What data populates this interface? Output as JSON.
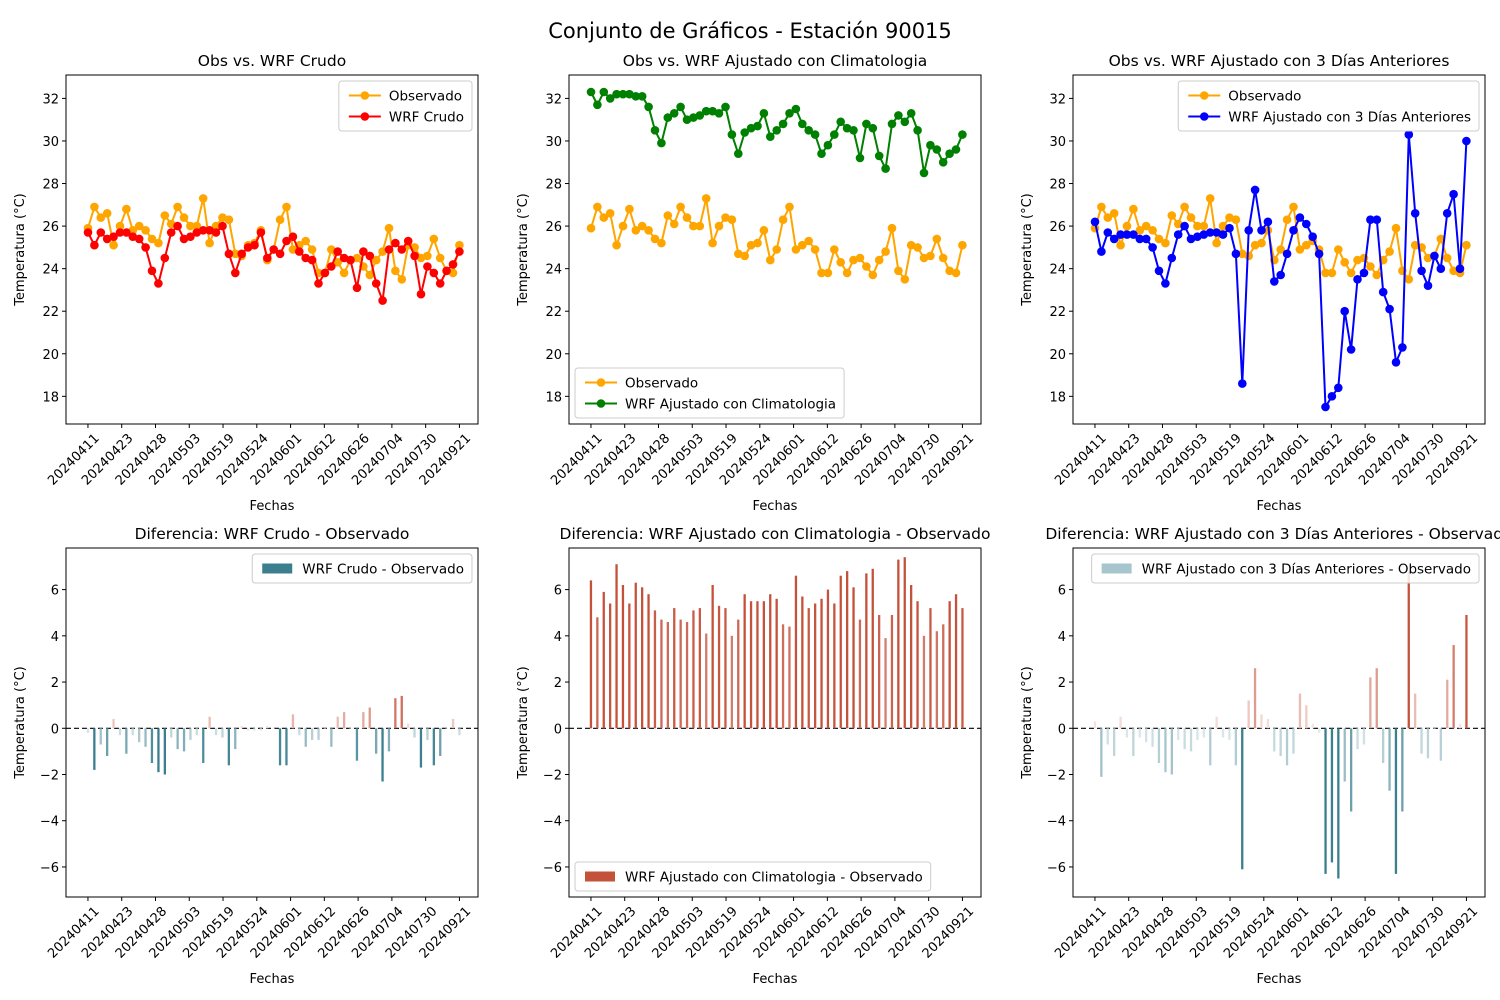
{
  "figure": {
    "title": "Conjunto de Gráficos - Estación 90015"
  },
  "colors": {
    "observado": "#FFA500",
    "wrf_crudo": "#FF0000",
    "wrf_clima": "#008000",
    "wrf_3dias": "#0000FF",
    "diff_neg": "#3B7F8F",
    "diff_pos": "#C4513A"
  },
  "chart_data": [
    {
      "type": "line",
      "title": "Obs vs. WRF Crudo",
      "xlabel": "Fechas",
      "ylabel": "Temperatura (°C)",
      "ylim": [
        16.7,
        33.1
      ],
      "yticks": [
        18,
        20,
        22,
        24,
        26,
        28,
        30,
        32
      ],
      "xtick_labels": [
        "20240411",
        "20240423",
        "20240428",
        "20240503",
        "20240519",
        "20240524",
        "20240601",
        "20240612",
        "20240626",
        "20240704",
        "20240730",
        "20240921"
      ],
      "legend_position": "upper right",
      "series": [
        {
          "name": "Observado",
          "values": [
            25.9,
            26.9,
            26.4,
            26.6,
            25.1,
            26.0,
            26.8,
            25.8,
            26.0,
            25.8,
            25.4,
            25.2,
            26.5,
            26.1,
            26.9,
            26.4,
            26.0,
            26.0,
            27.3,
            25.2,
            26.0,
            26.4,
            26.3,
            24.7,
            24.6,
            25.1,
            25.2,
            25.8,
            24.4,
            24.9,
            26.3,
            26.9,
            24.9,
            25.1,
            25.3,
            24.9,
            23.8,
            23.8,
            24.9,
            24.3,
            23.8,
            24.4,
            24.5,
            24.1,
            23.7,
            24.4,
            24.8,
            25.9,
            23.9,
            23.5,
            25.1,
            25.0,
            24.5,
            24.6,
            25.4,
            24.5,
            23.9,
            23.8,
            25.1
          ]
        },
        {
          "name": "WRF Crudo",
          "values": [
            25.7,
            25.1,
            25.7,
            25.4,
            25.5,
            25.7,
            25.7,
            25.5,
            25.4,
            25.0,
            23.9,
            23.3,
            24.5,
            25.7,
            26.0,
            25.4,
            25.5,
            25.7,
            25.8,
            25.8,
            25.7,
            26.0,
            24.7,
            23.8,
            24.7,
            25.0,
            25.1,
            25.7,
            24.5,
            24.9,
            24.7,
            25.3,
            25.5,
            24.8,
            24.5,
            24.4,
            23.3,
            23.8,
            24.1,
            24.8,
            24.5,
            24.4,
            23.1,
            24.8,
            24.6,
            23.3,
            22.5,
            24.9,
            25.2,
            24.9,
            25.3,
            24.6,
            22.8,
            24.1,
            23.8,
            23.3,
            23.9,
            24.2,
            24.8
          ]
        }
      ]
    },
    {
      "type": "line",
      "title": "Obs vs. WRF Ajustado con Climatologia",
      "xlabel": "Fechas",
      "ylabel": "Temperatura (°C)",
      "ylim": [
        16.7,
        33.1
      ],
      "yticks": [
        18,
        20,
        22,
        24,
        26,
        28,
        30,
        32
      ],
      "xtick_labels": [
        "20240411",
        "20240423",
        "20240428",
        "20240503",
        "20240519",
        "20240524",
        "20240601",
        "20240612",
        "20240626",
        "20240704",
        "20240730",
        "20240921"
      ],
      "legend_position": "lower left",
      "series": [
        {
          "name": "Observado",
          "values": [
            25.9,
            26.9,
            26.4,
            26.6,
            25.1,
            26.0,
            26.8,
            25.8,
            26.0,
            25.8,
            25.4,
            25.2,
            26.5,
            26.1,
            26.9,
            26.4,
            26.0,
            26.0,
            27.3,
            25.2,
            26.0,
            26.4,
            26.3,
            24.7,
            24.6,
            25.1,
            25.2,
            25.8,
            24.4,
            24.9,
            26.3,
            26.9,
            24.9,
            25.1,
            25.3,
            24.9,
            23.8,
            23.8,
            24.9,
            24.3,
            23.8,
            24.4,
            24.5,
            24.1,
            23.7,
            24.4,
            24.8,
            25.9,
            23.9,
            23.5,
            25.1,
            25.0,
            24.5,
            24.6,
            25.4,
            24.5,
            23.9,
            23.8,
            25.1
          ]
        },
        {
          "name": "WRF Ajustado con Climatologia",
          "values": [
            32.3,
            31.7,
            32.3,
            32.0,
            32.2,
            32.2,
            32.2,
            32.1,
            32.1,
            31.6,
            30.5,
            29.9,
            31.1,
            31.3,
            31.6,
            31.0,
            31.1,
            31.2,
            31.4,
            31.4,
            31.3,
            31.6,
            30.3,
            29.4,
            30.4,
            30.6,
            30.7,
            31.3,
            30.2,
            30.5,
            30.8,
            31.3,
            31.5,
            30.8,
            30.5,
            30.3,
            29.4,
            29.8,
            30.3,
            30.9,
            30.6,
            30.5,
            29.2,
            30.8,
            30.6,
            29.3,
            28.7,
            30.8,
            31.2,
            30.9,
            31.3,
            30.5,
            28.5,
            29.8,
            29.6,
            29.0,
            29.4,
            29.6,
            30.3
          ]
        }
      ]
    },
    {
      "type": "line",
      "title": "Obs vs. WRF Ajustado con 3 Días Anteriores",
      "xlabel": "Fechas",
      "ylabel": "Temperatura (°C)",
      "ylim": [
        16.7,
        33.1
      ],
      "yticks": [
        18,
        20,
        22,
        24,
        26,
        28,
        30,
        32
      ],
      "xtick_labels": [
        "20240411",
        "20240423",
        "20240428",
        "20240503",
        "20240519",
        "20240524",
        "20240601",
        "20240612",
        "20240626",
        "20240704",
        "20240730",
        "20240921"
      ],
      "legend_position": "upper right",
      "series": [
        {
          "name": "Observado",
          "values": [
            25.9,
            26.9,
            26.4,
            26.6,
            25.1,
            26.0,
            26.8,
            25.8,
            26.0,
            25.8,
            25.4,
            25.2,
            26.5,
            26.1,
            26.9,
            26.4,
            26.0,
            26.0,
            27.3,
            25.2,
            26.0,
            26.4,
            26.3,
            24.7,
            24.6,
            25.1,
            25.2,
            25.8,
            24.4,
            24.9,
            26.3,
            26.9,
            24.9,
            25.1,
            25.3,
            24.9,
            23.8,
            23.8,
            24.9,
            24.3,
            23.8,
            24.4,
            24.5,
            24.1,
            23.7,
            24.4,
            24.8,
            25.9,
            23.9,
            23.5,
            25.1,
            25.0,
            24.5,
            24.6,
            25.4,
            24.5,
            23.9,
            23.8,
            25.1
          ]
        },
        {
          "name": "WRF Ajustado con 3 Días Anteriores",
          "values": [
            26.2,
            24.8,
            25.7,
            25.4,
            25.6,
            25.6,
            25.6,
            25.4,
            25.4,
            25.0,
            23.9,
            23.3,
            24.5,
            25.6,
            26.0,
            25.4,
            25.5,
            25.6,
            25.7,
            25.7,
            25.6,
            25.9,
            24.7,
            18.6,
            25.8,
            27.7,
            25.8,
            26.2,
            23.4,
            23.7,
            24.7,
            25.8,
            26.4,
            26.1,
            25.5,
            24.7,
            17.5,
            18.0,
            18.4,
            22.0,
            20.2,
            23.5,
            23.8,
            26.3,
            26.3,
            22.9,
            22.1,
            19.6,
            20.3,
            30.3,
            26.6,
            23.9,
            23.2,
            24.6,
            24.0,
            26.6,
            27.5,
            24.0,
            30.0
          ]
        }
      ]
    },
    {
      "type": "bar",
      "title": "Diferencia: WRF Crudo - Observado",
      "xlabel": "Fechas",
      "ylabel": "Temperatura (°C)",
      "ylim": [
        -7.3,
        7.8
      ],
      "yticks": [
        -6,
        -4,
        -2,
        0,
        2,
        4,
        6
      ],
      "xtick_labels": [
        "20240411",
        "20240423",
        "20240428",
        "20240503",
        "20240519",
        "20240524",
        "20240601",
        "20240612",
        "20240626",
        "20240704",
        "20240730",
        "20240921"
      ],
      "legend_position": "upper right",
      "zero_line": true,
      "series": [
        {
          "name": "WRF Crudo - Observado",
          "values": [
            -0.2,
            -1.8,
            -0.7,
            -1.2,
            0.4,
            -0.3,
            -1.1,
            -0.3,
            -0.6,
            -0.8,
            -1.5,
            -1.9,
            -2.0,
            -0.4,
            -0.9,
            -1.0,
            -0.5,
            -0.3,
            -1.5,
            0.5,
            -0.3,
            -0.4,
            -1.6,
            -0.9,
            0.1,
            -0.1,
            -0.1,
            -0.1,
            0.1,
            0.0,
            -1.6,
            -1.6,
            0.6,
            -0.3,
            -0.8,
            -0.5,
            -0.5,
            0.0,
            -0.8,
            0.5,
            0.7,
            0.0,
            -1.4,
            0.7,
            0.9,
            -1.1,
            -2.3,
            -1.0,
            1.3,
            1.4,
            0.2,
            -0.4,
            -1.7,
            -0.5,
            -1.6,
            -1.2,
            0.0,
            0.4,
            -0.3
          ]
        }
      ]
    },
    {
      "type": "bar",
      "title": "Diferencia: WRF Ajustado con Climatologia - Observado",
      "xlabel": "Fechas",
      "ylabel": "Temperatura (°C)",
      "ylim": [
        -7.3,
        7.8
      ],
      "yticks": [
        -6,
        -4,
        -2,
        0,
        2,
        4,
        6
      ],
      "xtick_labels": [
        "20240411",
        "20240423",
        "20240428",
        "20240503",
        "20240519",
        "20240524",
        "20240601",
        "20240612",
        "20240626",
        "20240704",
        "20240730",
        "20240921"
      ],
      "legend_position": "lower left",
      "zero_line": true,
      "series": [
        {
          "name": "WRF Ajustado con Climatologia - Observado",
          "values": [
            6.4,
            4.8,
            5.9,
            5.4,
            7.1,
            6.2,
            5.4,
            6.3,
            6.1,
            5.8,
            5.1,
            4.7,
            4.6,
            5.2,
            4.7,
            4.6,
            5.1,
            5.2,
            4.1,
            6.2,
            5.3,
            5.2,
            4.0,
            4.7,
            5.8,
            5.5,
            5.5,
            5.5,
            5.8,
            5.6,
            4.5,
            4.4,
            6.6,
            5.7,
            5.2,
            5.4,
            5.6,
            6.0,
            5.4,
            6.6,
            6.8,
            6.1,
            4.7,
            6.7,
            6.9,
            4.9,
            3.9,
            4.9,
            7.3,
            7.4,
            6.2,
            5.5,
            4.0,
            5.2,
            4.2,
            4.5,
            5.5,
            5.8,
            5.2
          ]
        }
      ]
    },
    {
      "type": "bar",
      "title": "Diferencia: WRF Ajustado con 3 Días Anteriores - Observado",
      "xlabel": "Fechas",
      "ylabel": "Temperatura (°C)",
      "ylim": [
        -7.3,
        7.8
      ],
      "yticks": [
        -6,
        -4,
        -2,
        0,
        2,
        4,
        6
      ],
      "xtick_labels": [
        "20240411",
        "20240423",
        "20240428",
        "20240503",
        "20240519",
        "20240524",
        "20240601",
        "20240612",
        "20240626",
        "20240704",
        "20240730",
        "20240921"
      ],
      "legend_position": "upper right",
      "zero_line": true,
      "series": [
        {
          "name": "WRF Ajustado con 3 Días Anteriores - Observado",
          "values": [
            0.3,
            -2.1,
            -0.7,
            -1.2,
            0.5,
            -0.4,
            -1.2,
            -0.4,
            -0.6,
            -0.8,
            -1.5,
            -1.9,
            -2.0,
            -0.5,
            -0.9,
            -1.0,
            -0.5,
            -0.4,
            -1.6,
            0.5,
            -0.4,
            -0.5,
            -1.6,
            -6.1,
            1.2,
            2.6,
            0.6,
            0.4,
            -1.0,
            -1.2,
            -1.6,
            -1.1,
            1.5,
            1.0,
            0.2,
            -0.2,
            -6.3,
            -5.8,
            -6.5,
            -2.3,
            -3.6,
            -0.9,
            -0.7,
            2.2,
            2.6,
            -1.5,
            -2.7,
            -6.3,
            -3.6,
            6.8,
            1.5,
            -1.1,
            -1.3,
            0.0,
            -1.4,
            2.1,
            3.6,
            0.2,
            4.9
          ]
        }
      ]
    }
  ]
}
